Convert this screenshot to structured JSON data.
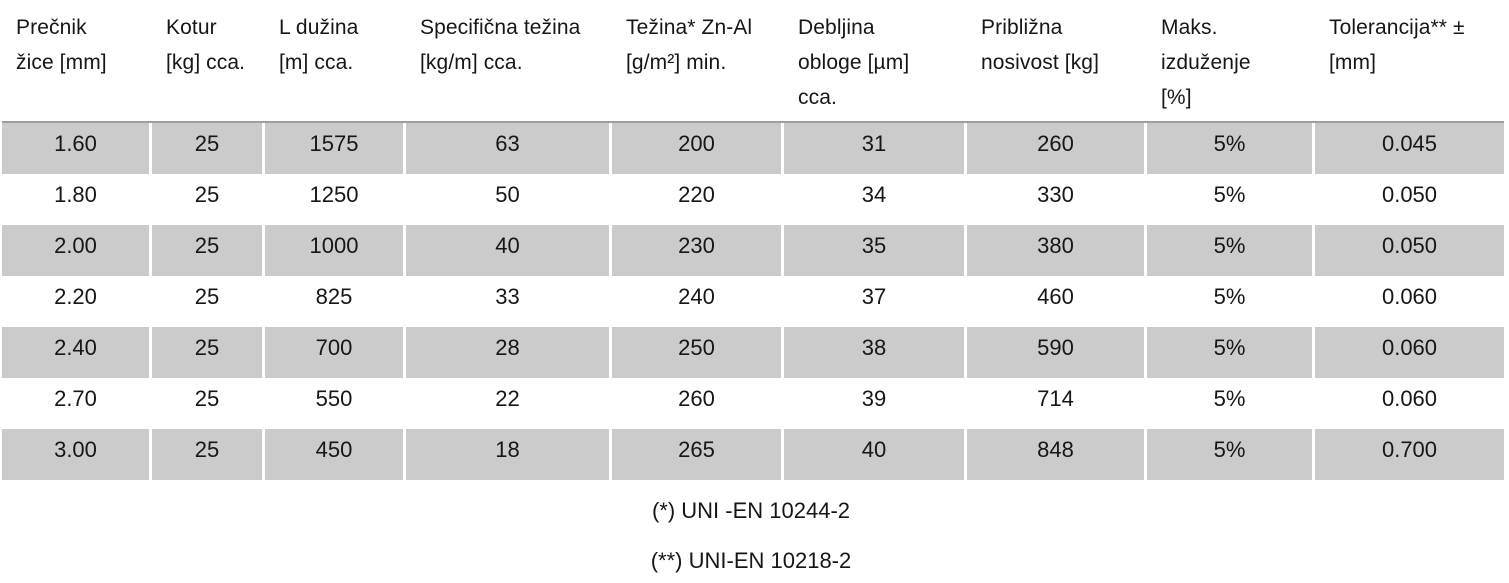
{
  "table": {
    "columns": [
      {
        "id": "precnik-zice",
        "label": "Prečnik\nžice [mm]"
      },
      {
        "id": "kotur",
        "label": "Kotur\n[kg] cca."
      },
      {
        "id": "l-duzina",
        "label": "L dužina\n[m] cca."
      },
      {
        "id": "specificna-tezina",
        "label": "Specifična težina\n[kg/m] cca."
      },
      {
        "id": "tezina-zn-al",
        "label": "Težina* Zn-Al\n[g/m²] min."
      },
      {
        "id": "debljina-obloge",
        "label": "Debljina\nobloge [µm]\ncca."
      },
      {
        "id": "priblizna-nosivost",
        "label": "Približna\nnosivost [kg]"
      },
      {
        "id": "maks-izduzenje",
        "label": "Maks.\nizduženje\n[%]"
      },
      {
        "id": "tolerancija",
        "label": "Tolerancija** ±\n[mm]"
      }
    ],
    "rows": [
      [
        "1.60",
        "25",
        "1575",
        "63",
        "200",
        "31",
        "260",
        "5%",
        "0.045"
      ],
      [
        "1.80",
        "25",
        "1250",
        "50",
        "220",
        "34",
        "330",
        "5%",
        "0.050"
      ],
      [
        "2.00",
        "25",
        "1000",
        "40",
        "230",
        "35",
        "380",
        "5%",
        "0.050"
      ],
      [
        "2.20",
        "25",
        "825",
        "33",
        "240",
        "37",
        "460",
        "5%",
        "0.060"
      ],
      [
        "2.40",
        "25",
        "700",
        "28",
        "250",
        "38",
        "590",
        "5%",
        "0.060"
      ],
      [
        "2.70",
        "25",
        "550",
        "22",
        "260",
        "39",
        "714",
        "5%",
        "0.060"
      ],
      [
        "3.00",
        "25",
        "450",
        "18",
        "265",
        "40",
        "848",
        "5%",
        "0.700"
      ]
    ]
  },
  "footnotes": [
    "(*) UNI -EN 10244-2",
    "(**) UNI-EN 10218-2"
  ],
  "colors": {
    "stripe": "#cbcbcb",
    "top_border": "#9e9e9e",
    "text": "#161616",
    "background": "#ffffff"
  }
}
